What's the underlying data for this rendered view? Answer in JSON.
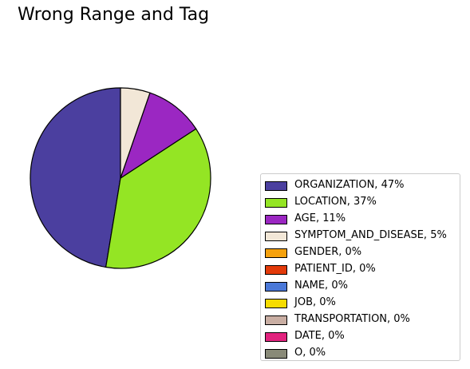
{
  "chart_data": {
    "type": "pie",
    "title": "Wrong Range and Tag",
    "start_angle_deg": 90,
    "direction": "counterclockwise",
    "slices": [
      {
        "label": "ORGANIZATION, 47%",
        "value": 47.4,
        "color": "#4b3f9f"
      },
      {
        "label": "LOCATION, 37%",
        "value": 36.8,
        "color": "#94e524"
      },
      {
        "label": "AGE, 11%",
        "value": 10.5,
        "color": "#9b27c2"
      },
      {
        "label": "SYMPTOM_AND_DISEASE, 5%",
        "value": 5.3,
        "color": "#f2e7d7"
      },
      {
        "label": "GENDER, 0%",
        "value": 0,
        "color": "#f5a10d"
      },
      {
        "label": "PATIENT_ID, 0%",
        "value": 0,
        "color": "#e23a0a"
      },
      {
        "label": "NAME, 0%",
        "value": 0,
        "color": "#4a78d8"
      },
      {
        "label": "JOB, 0%",
        "value": 0,
        "color": "#f7dc00"
      },
      {
        "label": "TRANSPORTATION, 0%",
        "value": 0,
        "color": "#c9aea3"
      },
      {
        "label": "DATE, 0%",
        "value": 0,
        "color": "#e2237e"
      },
      {
        "label": "O, 0%",
        "value": 0,
        "color": "#898a78"
      }
    ],
    "legend_position": "lower-right"
  }
}
